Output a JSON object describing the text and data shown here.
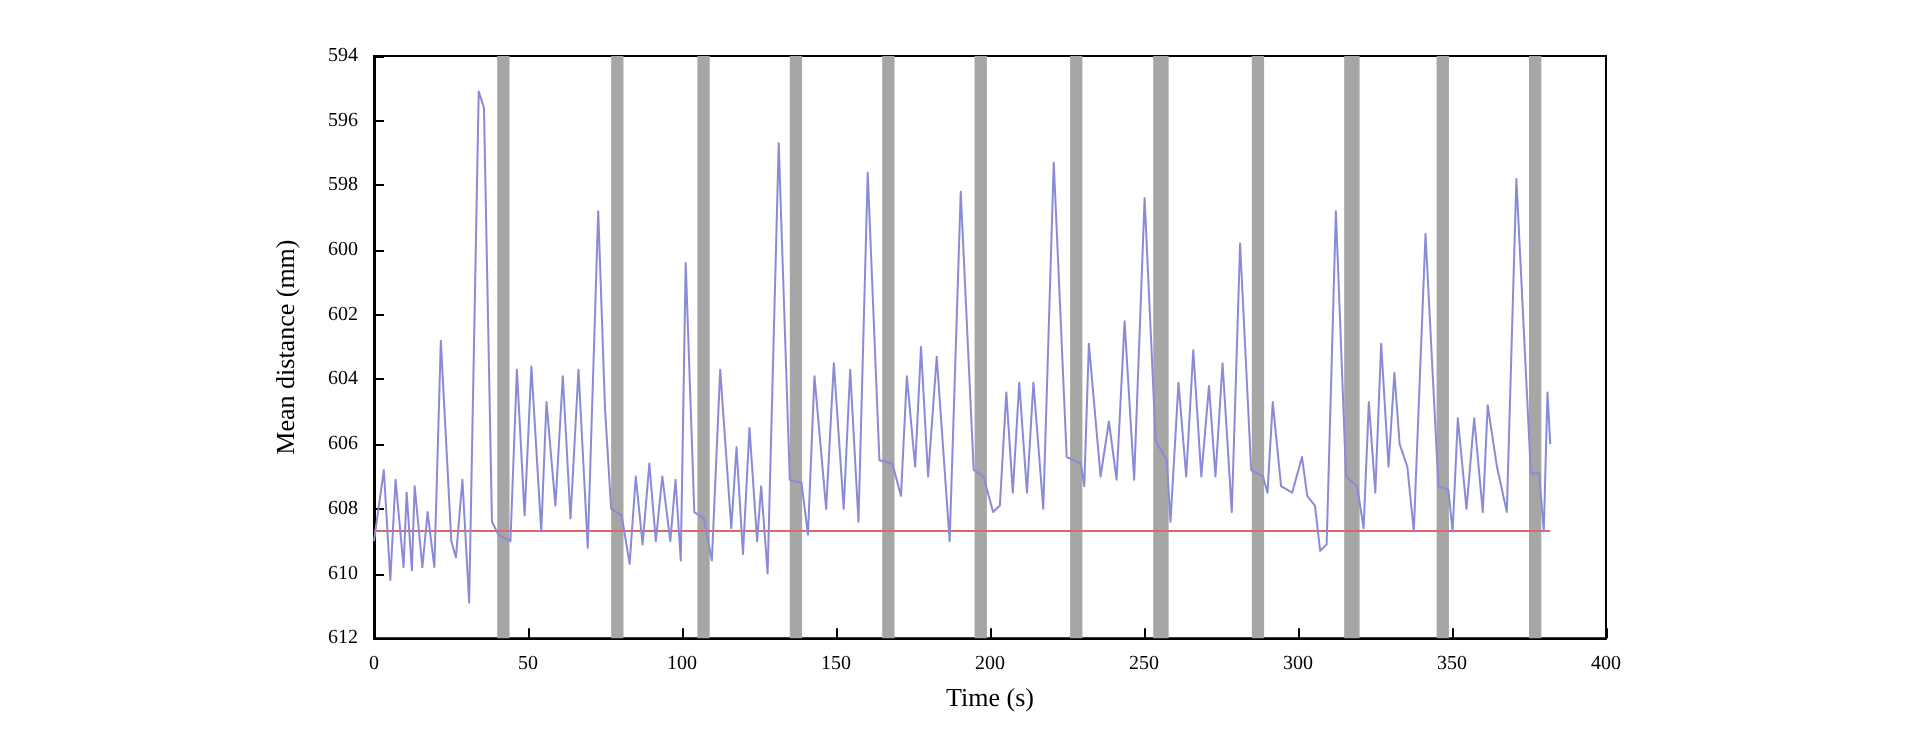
{
  "chart_data": {
    "type": "line",
    "xlabel": "Time (s)",
    "ylabel": "Mean distance (mm)",
    "xlim": [
      0,
      400
    ],
    "xticks": [
      0,
      50,
      100,
      150,
      200,
      250,
      300,
      350,
      400
    ],
    "ylim": [
      612,
      594
    ],
    "yticks": [
      594,
      596,
      598,
      600,
      602,
      604,
      606,
      608,
      610,
      612
    ],
    "grid": false,
    "marker": "none",
    "line_style": "solid",
    "series": [
      {
        "color": "#8a8ad8",
        "x": [
          0,
          3.2,
          5.3,
          7,
          9.6,
          10.6,
          12.3,
          13.2,
          15.7,
          17.4,
          19.6,
          21.7,
          25.1,
          26.6,
          28.7,
          30.9,
          34,
          35.7,
          38.3,
          40.4,
          44.3,
          46.4,
          48.9,
          51.1,
          54.3,
          56,
          58.9,
          61.3,
          63.8,
          66.4,
          69.4,
          72.8,
          75,
          77,
          80.4,
          83,
          85,
          87.2,
          89.4,
          91.5,
          93.6,
          96.2,
          97.9,
          99.6,
          101.2,
          104,
          107.1,
          109.7,
          112.4,
          116,
          117.7,
          119.8,
          121.9,
          124.4,
          125.7,
          127.8,
          131.4,
          135,
          138.8,
          140.9,
          143,
          146.8,
          149.3,
          152.5,
          154.6,
          157.3,
          160.3,
          164.1,
          168.3,
          171.1,
          173,
          175.7,
          177.6,
          179.9,
          182.7,
          186.9,
          190.5,
          194.7,
          197.9,
          201,
          203.2,
          205.3,
          207.4,
          209.5,
          212,
          214.1,
          217.3,
          220.7,
          224.9,
          229.5,
          230.6,
          232.1,
          235.9,
          238.6,
          241.1,
          243.7,
          246.8,
          250.2,
          253.8,
          257.4,
          258.6,
          261.2,
          263.7,
          266,
          268.6,
          271.1,
          273.2,
          275.5,
          278.5,
          281.2,
          284.8,
          288.6,
          290.1,
          291.8,
          294.5,
          298.1,
          301.3,
          303,
          305.5,
          307.2,
          309.3,
          312.3,
          315.6,
          319.2,
          321.3,
          323,
          325.1,
          327,
          329.4,
          331.3,
          333,
          335.5,
          337.6,
          341.4,
          345.6,
          348.8,
          350.2,
          351.9,
          354.7,
          357.2,
          360,
          361.6,
          364.6,
          367.8,
          370.9,
          375.6,
          378.3,
          379.8,
          381,
          381.9
        ],
        "values": [
          609,
          606.8,
          610.2,
          607.1,
          609.8,
          607.5,
          609.9,
          607.3,
          609.8,
          608.1,
          609.8,
          602.8,
          609,
          609.5,
          607.1,
          610.9,
          595.1,
          595.6,
          608.4,
          608.8,
          609,
          603.7,
          608.2,
          603.6,
          608.7,
          604.7,
          607.9,
          603.9,
          608.3,
          603.7,
          609.2,
          598.8,
          604.9,
          608,
          608.2,
          609.7,
          607,
          609.1,
          606.6,
          609,
          607,
          609,
          607.1,
          609.6,
          600.4,
          608.1,
          608.3,
          609.6,
          603.7,
          608.6,
          606.1,
          609.4,
          605.5,
          609,
          607.3,
          610,
          596.7,
          607.1,
          607.2,
          608.8,
          603.9,
          608,
          603.5,
          608,
          603.7,
          608.4,
          597.6,
          606.5,
          606.6,
          607.6,
          603.9,
          606.7,
          603,
          607,
          603.3,
          609,
          598.2,
          606.8,
          607,
          608.1,
          607.9,
          604.4,
          607.5,
          604.1,
          607.5,
          604.1,
          608,
          597.3,
          606.4,
          606.6,
          607.3,
          602.9,
          607,
          605.3,
          607.1,
          602.2,
          607.1,
          598.4,
          605.9,
          606.5,
          608.4,
          604.1,
          607,
          603.1,
          607,
          604.2,
          607,
          603.5,
          608.1,
          599.8,
          606.8,
          607,
          607.5,
          604.7,
          607.3,
          607.5,
          606.4,
          607.6,
          607.9,
          609.3,
          609.1,
          598.8,
          607,
          607.3,
          608.6,
          604.7,
          607.5,
          602.9,
          606.7,
          603.8,
          606,
          606.7,
          608.7,
          599.5,
          607.3,
          607.4,
          608.7,
          605.2,
          608,
          605.2,
          608.1,
          604.8,
          606.7,
          608.1,
          597.8,
          606.9,
          606.9,
          608.7,
          604.4,
          606
        ]
      }
    ],
    "ref_lines": [
      {
        "axis": "y",
        "value": 608.7,
        "color": "#e06666"
      }
    ],
    "bands": [
      {
        "axis": "x",
        "from": 40,
        "to": 44,
        "color": "#a6a6a6"
      },
      {
        "axis": "x",
        "from": 77,
        "to": 81,
        "color": "#a6a6a6"
      },
      {
        "axis": "x",
        "from": 105,
        "to": 109,
        "color": "#a6a6a6"
      },
      {
        "axis": "x",
        "from": 135,
        "to": 139,
        "color": "#a6a6a6"
      },
      {
        "axis": "x",
        "from": 165,
        "to": 169,
        "color": "#a6a6a6"
      },
      {
        "axis": "x",
        "from": 195,
        "to": 199,
        "color": "#a6a6a6"
      },
      {
        "axis": "x",
        "from": 226,
        "to": 230,
        "color": "#a6a6a6"
      },
      {
        "axis": "x",
        "from": 253,
        "to": 258,
        "color": "#a6a6a6"
      },
      {
        "axis": "x",
        "from": 285,
        "to": 289,
        "color": "#a6a6a6"
      },
      {
        "axis": "x",
        "from": 315,
        "to": 320,
        "color": "#a6a6a6"
      },
      {
        "axis": "x",
        "from": 345,
        "to": 349,
        "color": "#a6a6a6"
      },
      {
        "axis": "x",
        "from": 375,
        "to": 379,
        "color": "#a6a6a6"
      }
    ]
  }
}
